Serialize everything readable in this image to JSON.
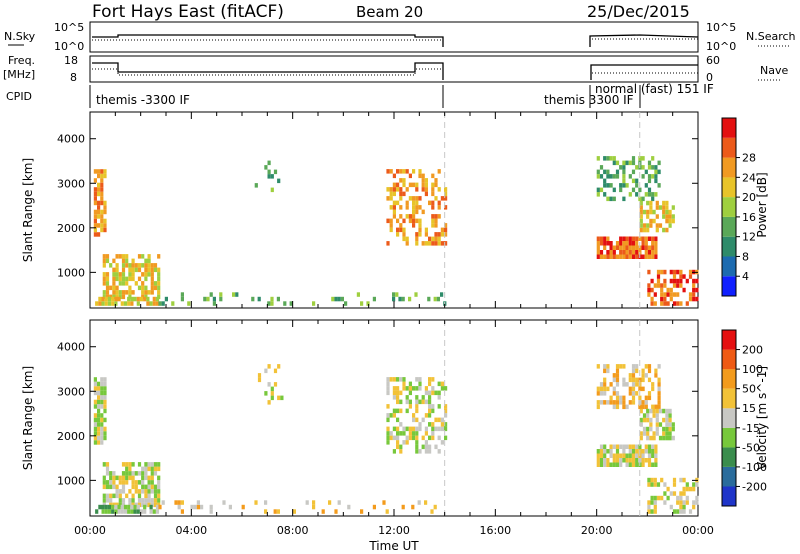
{
  "header": {
    "title": "Fort Hays East (fitACF)",
    "beam": "Beam 20",
    "date": "25/Dec/2015"
  },
  "panels": {
    "noise": {
      "left_label": "N.Sky",
      "right_label": "N.Search",
      "left_ticks": [
        "10^5",
        "10^0"
      ],
      "right_ticks": [
        "10^5",
        "10^0"
      ]
    },
    "freq": {
      "left_label_1": "Freq.",
      "left_label_2": "[MHz]",
      "right_label": "Nave",
      "left_ticks": [
        "18",
        "8"
      ],
      "right_ticks": [
        "60",
        "0"
      ]
    },
    "cpid": {
      "label": "CPID",
      "mode_1": "themis -3300 IF",
      "mode_2": "themis 3300 IF",
      "mode_3": "normal (fast) 151 IF"
    }
  },
  "chart_data": [
    {
      "type": "heatmap",
      "name": "power",
      "ylabel": "Slant Range [km]",
      "xlabel": "Time UT",
      "x_ticks": [
        "00:00",
        "04:00",
        "08:00",
        "12:00",
        "16:00",
        "20:00",
        "00:00"
      ],
      "y_ticks": [
        "1000",
        "2000",
        "3000",
        "4000"
      ],
      "ylim": [
        200,
        4600
      ],
      "colorbar": {
        "label": "Power [dB]",
        "levels": [
          "4",
          "8",
          "12",
          "16",
          "20",
          "24",
          "28"
        ],
        "colors": [
          "#1020ff",
          "#1c6bb0",
          "#2e8b6a",
          "#5aa858",
          "#9fcf3f",
          "#e8c42a",
          "#f19a22",
          "#ec5a1a",
          "#e31010"
        ]
      },
      "regions": [
        {
          "t0": 0.15,
          "t1": 0.6,
          "r0": 1800,
          "r1": 3300,
          "level": 6,
          "density": 0.8
        },
        {
          "t0": 0.5,
          "t1": 2.7,
          "r0": 400,
          "r1": 1400,
          "level": 5,
          "density": 0.7
        },
        {
          "t0": 0.2,
          "t1": 2.6,
          "r0": 250,
          "r1": 380,
          "level": 5,
          "density": 0.85
        },
        {
          "t0": 6.5,
          "t1": 7.6,
          "r0": 2700,
          "r1": 3600,
          "level": 3,
          "density": 0.15
        },
        {
          "t0": 11.7,
          "t1": 14.0,
          "r0": 1600,
          "r1": 3300,
          "level": 6,
          "density": 0.45
        },
        {
          "t0": 2.7,
          "t1": 14.0,
          "r0": 250,
          "r1": 500,
          "level": 3,
          "density": 0.18
        },
        {
          "t0": 20.0,
          "t1": 22.3,
          "r0": 1300,
          "r1": 1800,
          "level": 7,
          "density": 0.9
        },
        {
          "t0": 20.0,
          "t1": 22.5,
          "r0": 2600,
          "r1": 3600,
          "level": 3,
          "density": 0.5
        },
        {
          "t0": 21.7,
          "t1": 23.0,
          "r0": 1900,
          "r1": 2600,
          "level": 5,
          "density": 0.6
        },
        {
          "t0": 22.0,
          "t1": 24.0,
          "r0": 250,
          "r1": 1000,
          "level": 7,
          "density": 0.55
        }
      ]
    },
    {
      "type": "heatmap",
      "name": "velocity",
      "ylabel": "Slant Range [km]",
      "xlabel": "Time UT",
      "x_ticks": [
        "00:00",
        "04:00",
        "08:00",
        "12:00",
        "16:00",
        "20:00",
        "00:00"
      ],
      "y_ticks": [
        "1000",
        "2000",
        "3000",
        "4000"
      ],
      "ylim": [
        200,
        4600
      ],
      "colorbar": {
        "label": "Velocity [m s^-1]",
        "levels": [
          "200",
          "100",
          "50",
          "15",
          "-15",
          "-50",
          "-100",
          "-200"
        ],
        "colors": [
          "#1f35c9",
          "#2a6c9c",
          "#3a8d4d",
          "#77c83b",
          "#c8c8c4",
          "#f2c238",
          "#f39b1c",
          "#ef5a14",
          "#e51010"
        ]
      },
      "regions": [
        {
          "t0": 0.15,
          "t1": 0.6,
          "r0": 1800,
          "r1": 3300,
          "level": 4,
          "density": 0.8
        },
        {
          "t0": 0.5,
          "t1": 2.7,
          "r0": 400,
          "r1": 1400,
          "level": 4,
          "density": 0.7
        },
        {
          "t0": 0.2,
          "t1": 2.6,
          "r0": 250,
          "r1": 380,
          "level": 3,
          "density": 0.85
        },
        {
          "t0": 6.5,
          "t1": 7.6,
          "r0": 2700,
          "r1": 3600,
          "level": 4,
          "density": 0.15
        },
        {
          "t0": 11.7,
          "t1": 14.0,
          "r0": 1600,
          "r1": 3300,
          "level": 4,
          "density": 0.45
        },
        {
          "t0": 2.7,
          "t1": 14.0,
          "r0": 250,
          "r1": 500,
          "level": 5,
          "density": 0.18
        },
        {
          "t0": 20.0,
          "t1": 22.3,
          "r0": 1300,
          "r1": 1800,
          "level": 4,
          "density": 0.9
        },
        {
          "t0": 20.0,
          "t1": 22.5,
          "r0": 2600,
          "r1": 3600,
          "level": 5,
          "density": 0.5
        },
        {
          "t0": 21.7,
          "t1": 23.0,
          "r0": 1900,
          "r1": 2600,
          "level": 4,
          "density": 0.6
        },
        {
          "t0": 22.0,
          "t1": 24.0,
          "r0": 250,
          "r1": 1000,
          "level": 4,
          "density": 0.55
        }
      ]
    }
  ]
}
